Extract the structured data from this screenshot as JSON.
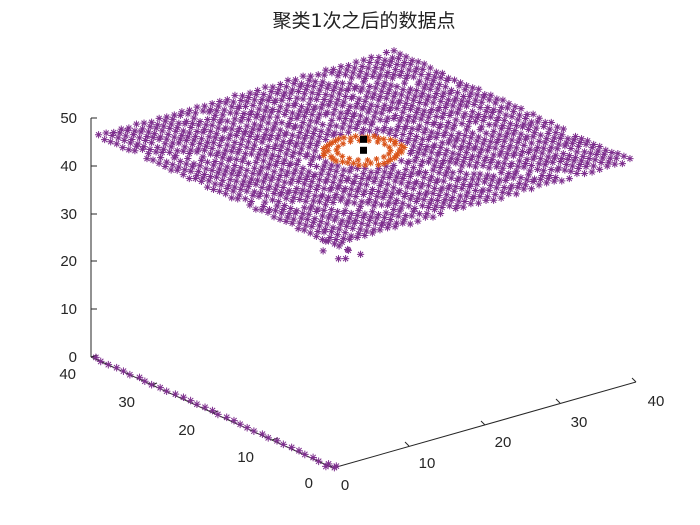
{
  "chart_data": {
    "type": "scatter3d",
    "title": "聚类1次之后的数据点",
    "xlabel": "",
    "ylabel": "",
    "zlabel": "",
    "xlim": [
      0,
      40
    ],
    "ylim": [
      0,
      40
    ],
    "zlim": [
      0,
      50
    ],
    "x_ticks": [
      "0",
      "10",
      "20",
      "30",
      "40"
    ],
    "y_ticks": [
      "0",
      "10",
      "20",
      "30",
      "40"
    ],
    "z_ticks": [
      "0",
      "10",
      "20",
      "30",
      "40",
      "50"
    ],
    "grid": false,
    "legend": "none",
    "marker": "*",
    "series": [
      {
        "color": "#7E2F8E",
        "description_plane": {
          "z": 40,
          "x_range": [
            0,
            40
          ],
          "y_range": [
            0,
            40
          ]
        },
        "description_line": {
          "z": 0,
          "x": 0,
          "y_range": [
            0,
            40
          ]
        }
      },
      {
        "color": "#D95319",
        "ring_center": [
          20,
          20,
          40
        ],
        "ring_radius": 4
      },
      {
        "color": "#000000",
        "marker": "square",
        "points": [
          [
            20,
            20,
            40
          ],
          [
            20,
            20,
            42
          ]
        ]
      }
    ]
  }
}
